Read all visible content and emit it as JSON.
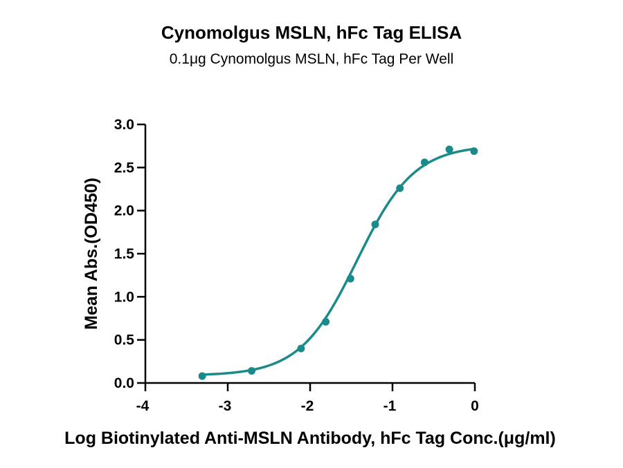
{
  "chart_data": {
    "type": "scatter",
    "title": "Cynomolgus MSLN, hFc Tag ELISA",
    "subtitle": "0.1μg Cynomolgus MSLN, hFc Tag Per Well",
    "xlabel": "Log Biotinylated Anti-MSLN Antibody, hFc Tag Conc.(μg/ml)",
    "ylabel": "Mean Abs.(OD450)",
    "xlim": [
      -4,
      0
    ],
    "ylim": [
      0,
      3
    ],
    "xticks": [
      -4,
      -3,
      -2,
      -1,
      0
    ],
    "xtick_labels": [
      "-4",
      "-3",
      "-2",
      "-1",
      "0"
    ],
    "yticks": [
      0,
      0.5,
      1,
      1.5,
      2,
      2.5,
      3
    ],
    "ytick_labels": [
      "0.0",
      "0.5",
      "1.0",
      "1.5",
      "2.0",
      "2.5",
      "3.0"
    ],
    "grid": false,
    "series": [
      {
        "color": "#1a8a8a",
        "points": [
          {
            "x": -3.31,
            "y": 0.08
          },
          {
            "x": -2.71,
            "y": 0.14
          },
          {
            "x": -2.11,
            "y": 0.4
          },
          {
            "x": -1.81,
            "y": 0.71
          },
          {
            "x": -1.51,
            "y": 1.21
          },
          {
            "x": -1.21,
            "y": 1.84
          },
          {
            "x": -0.91,
            "y": 2.26
          },
          {
            "x": -0.61,
            "y": 2.56
          },
          {
            "x": -0.31,
            "y": 2.71
          },
          {
            "x": -0.01,
            "y": 2.69
          }
        ],
        "fit": {
          "type": "4PL",
          "bottom": 0.085,
          "top": 2.76,
          "log_ec50": -1.43,
          "hill": 1.25,
          "x_range": [
            -3.31,
            0
          ]
        }
      }
    ]
  }
}
